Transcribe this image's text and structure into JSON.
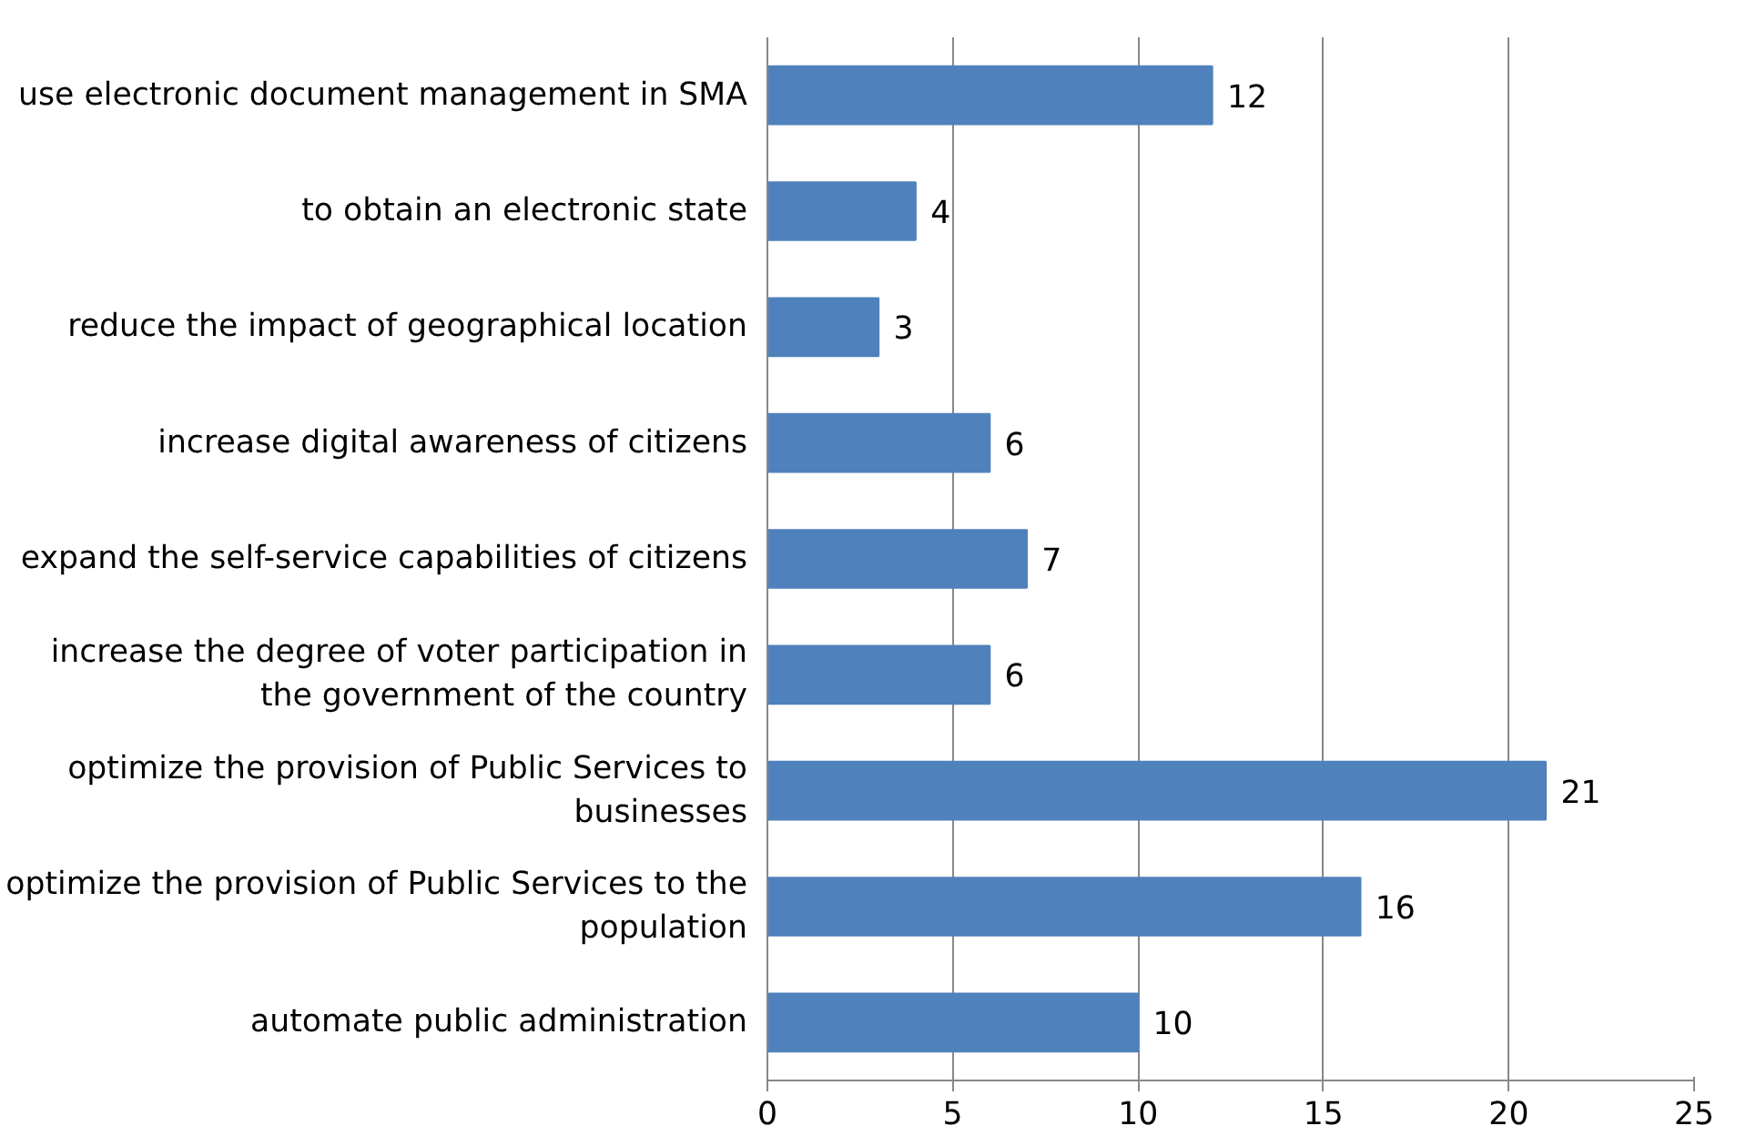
{
  "chart_data": {
    "type": "bar",
    "orientation": "horizontal",
    "categories": [
      "use electronic document management in SMA",
      "to obtain an electronic state",
      "reduce the impact of geographical location",
      "increase digital awareness of citizens",
      "expand the self-service capabilities of citizens",
      "increase the degree of voter participation in the government of the country",
      "optimize the provision of Public Services to businesses",
      "optimize the provision of Public Services to the population",
      "automate public administration"
    ],
    "values": [
      12,
      4,
      3,
      6,
      7,
      6,
      21,
      16,
      10
    ],
    "color": "#4f81bd",
    "xlim": [
      0,
      25
    ],
    "xticks": [
      0,
      5,
      10,
      15,
      20,
      25
    ],
    "grid": "x",
    "data_labels": true
  }
}
